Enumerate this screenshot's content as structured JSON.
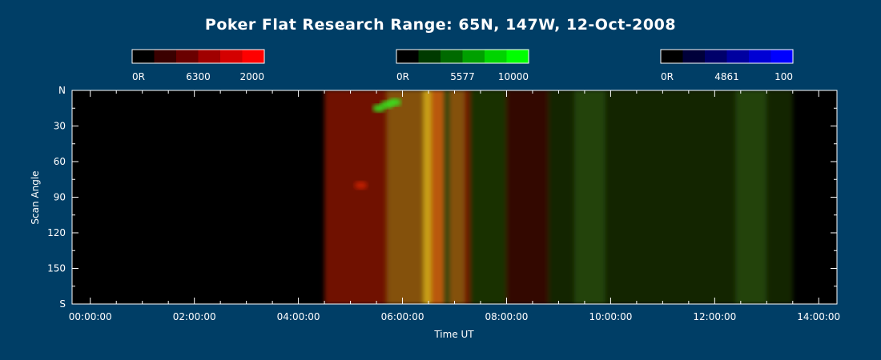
{
  "title": "Poker Flat Research Range: 65N, 147W, 12-Oct-2008",
  "colorbars": [
    {
      "name": "6300",
      "min_label": "0R",
      "center_label": "6300",
      "max_label": "2000",
      "colors": [
        "#000000",
        "#3a0000",
        "#6a0000",
        "#a00000",
        "#d40000",
        "#ff0000"
      ]
    },
    {
      "name": "5577",
      "min_label": "0R",
      "center_label": "5577",
      "max_label": "10000",
      "colors": [
        "#000000",
        "#003a00",
        "#006a00",
        "#00a000",
        "#00d400",
        "#00ff00"
      ]
    },
    {
      "name": "4861",
      "min_label": "0R",
      "center_label": "4861",
      "max_label": "100",
      "colors": [
        "#000000",
        "#00003a",
        "#00006a",
        "#0000a0",
        "#0000d4",
        "#0000ff"
      ]
    }
  ],
  "chart_data": {
    "type": "heatmap",
    "xlabel": "Time UT",
    "ylabel": "Scan Angle",
    "x_range_hours": [
      -0.35,
      14.35
    ],
    "y_range_deg": [
      0,
      180
    ],
    "x_ticks": [
      {
        "hour": 0,
        "label": "00:00:00"
      },
      {
        "hour": 2,
        "label": "02:00:00"
      },
      {
        "hour": 4,
        "label": "04:00:00"
      },
      {
        "hour": 6,
        "label": "06:00:00"
      },
      {
        "hour": 8,
        "label": "08:00:00"
      },
      {
        "hour": 10,
        "label": "10:00:00"
      },
      {
        "hour": 12,
        "label": "12:00:00"
      },
      {
        "hour": 14,
        "label": "14:00:00"
      }
    ],
    "y_ticks": [
      {
        "deg": 0,
        "label": "N"
      },
      {
        "deg": 30,
        "label": "30"
      },
      {
        "deg": 60,
        "label": "60"
      },
      {
        "deg": 90,
        "label": "90"
      },
      {
        "deg": 120,
        "label": "120"
      },
      {
        "deg": 150,
        "label": "150"
      },
      {
        "deg": 180,
        "label": "S"
      }
    ],
    "data_start_hour": 4.5,
    "data_end_hour": 13.5,
    "background_color": "#000000",
    "red_color": "#cc2200",
    "green_color": "#3f7a10",
    "bright_green_color": "#33ee22",
    "emission_features": [
      {
        "start_hour": 4.5,
        "end_hour": 6.4,
        "color": "red",
        "intensity": 0.55
      },
      {
        "start_hour": 5.7,
        "end_hour": 7.2,
        "color": "green",
        "intensity": 0.55
      },
      {
        "start_hour": 6.4,
        "end_hour": 6.8,
        "color": "red",
        "intensity": 0.85
      },
      {
        "start_hour": 6.4,
        "end_hour": 6.55,
        "color": "green",
        "intensity": 0.9
      },
      {
        "start_hour": 6.9,
        "end_hour": 7.3,
        "color": "red",
        "intensity": 0.55
      },
      {
        "start_hour": 7.3,
        "end_hour": 8.0,
        "color": "green",
        "intensity": 0.4
      },
      {
        "start_hour": 8.0,
        "end_hour": 8.8,
        "color": "red",
        "intensity": 0.25
      },
      {
        "start_hour": 8.8,
        "end_hour": 9.3,
        "color": "green",
        "intensity": 0.3
      },
      {
        "start_hour": 9.3,
        "end_hour": 9.9,
        "color": "green",
        "intensity": 0.55
      },
      {
        "start_hour": 9.9,
        "end_hour": 11.6,
        "color": "green",
        "intensity": 0.3
      },
      {
        "start_hour": 11.6,
        "end_hour": 12.4,
        "color": "green",
        "intensity": 0.3
      },
      {
        "start_hour": 12.4,
        "end_hour": 13.0,
        "color": "green",
        "intensity": 0.55
      },
      {
        "start_hour": 13.0,
        "end_hour": 13.5,
        "color": "green",
        "intensity": 0.3
      }
    ],
    "bright_spots": [
      {
        "hour": 5.7,
        "deg": 12,
        "color": "bright_green"
      },
      {
        "hour": 5.85,
        "deg": 10,
        "color": "bright_green"
      },
      {
        "hour": 5.55,
        "deg": 15,
        "color": "bright_green"
      },
      {
        "hour": 5.2,
        "deg": 80,
        "color": "red"
      }
    ]
  }
}
